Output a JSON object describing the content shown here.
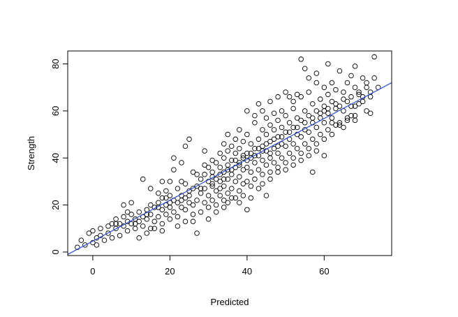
{
  "chart_data": {
    "type": "scatter",
    "title": "",
    "xlabel": "Predicted",
    "ylabel": "Strength",
    "xlim": [
      -6.5,
      77.5
    ],
    "ylim": [
      -1.5,
      85.5
    ],
    "x_ticks": [
      "0",
      "20",
      "40",
      "60"
    ],
    "x_tick_values": [
      0,
      20,
      40,
      60
    ],
    "y_ticks": [
      "0",
      "20",
      "40",
      "60",
      "80"
    ],
    "y_tick_values": [
      0,
      20,
      40,
      60,
      80
    ],
    "grid": false,
    "legend": "none",
    "point_color": "#000000",
    "fit_line": {
      "color": "#2b4fd6",
      "points": [
        [
          -6.5,
          -1.0
        ],
        [
          77.5,
          72.0
        ]
      ]
    },
    "series": [
      {
        "points": [
          [
            -4,
            2
          ],
          [
            -3,
            5
          ],
          [
            -2,
            3
          ],
          [
            -1,
            8
          ],
          [
            0,
            4
          ],
          [
            0,
            9
          ],
          [
            1,
            6
          ],
          [
            1,
            3
          ],
          [
            2,
            10
          ],
          [
            2,
            7
          ],
          [
            3,
            5
          ],
          [
            4,
            8
          ],
          [
            4,
            11
          ],
          [
            5,
            6
          ],
          [
            5,
            12
          ],
          [
            6,
            10
          ],
          [
            6,
            14
          ],
          [
            7,
            7
          ],
          [
            7,
            12
          ],
          [
            8,
            11
          ],
          [
            8,
            15
          ],
          [
            8,
            20
          ],
          [
            9,
            9
          ],
          [
            9,
            13
          ],
          [
            10,
            12
          ],
          [
            10,
            16
          ],
          [
            11,
            10
          ],
          [
            11,
            14
          ],
          [
            12,
            13
          ],
          [
            12,
            17
          ],
          [
            13,
            11
          ],
          [
            13,
            15
          ],
          [
            13,
            31
          ],
          [
            14,
            14
          ],
          [
            14,
            18
          ],
          [
            15,
            10
          ],
          [
            15,
            16
          ],
          [
            15,
            20
          ],
          [
            16,
            13
          ],
          [
            16,
            19
          ],
          [
            17,
            15
          ],
          [
            17,
            21
          ],
          [
            17,
            25
          ],
          [
            18,
            12
          ],
          [
            18,
            18
          ],
          [
            18,
            23
          ],
          [
            19,
            16
          ],
          [
            19,
            20
          ],
          [
            19,
            26
          ],
          [
            20,
            14
          ],
          [
            20,
            19
          ],
          [
            20,
            24
          ],
          [
            20,
            30
          ],
          [
            21,
            17
          ],
          [
            21,
            22
          ],
          [
            21,
            35
          ],
          [
            21,
            40
          ],
          [
            22,
            15
          ],
          [
            22,
            21
          ],
          [
            22,
            27
          ],
          [
            23,
            19
          ],
          [
            23,
            24
          ],
          [
            23,
            38
          ],
          [
            24,
            18
          ],
          [
            24,
            23
          ],
          [
            24,
            29
          ],
          [
            24,
            45
          ],
          [
            25,
            21
          ],
          [
            25,
            26
          ],
          [
            25,
            48
          ],
          [
            26,
            13
          ],
          [
            26,
            20
          ],
          [
            26,
            27
          ],
          [
            26,
            34
          ],
          [
            27,
            22
          ],
          [
            27,
            28
          ],
          [
            27,
            8
          ],
          [
            28,
            17
          ],
          [
            28,
            25
          ],
          [
            28,
            31
          ],
          [
            29,
            21
          ],
          [
            29,
            27
          ],
          [
            29,
            33
          ],
          [
            29,
            43
          ],
          [
            30,
            19
          ],
          [
            30,
            24
          ],
          [
            30,
            30
          ],
          [
            30,
            36
          ],
          [
            31,
            22
          ],
          [
            31,
            28
          ],
          [
            31,
            34
          ],
          [
            31,
            29
          ],
          [
            32,
            20
          ],
          [
            32,
            26
          ],
          [
            32,
            31
          ],
          [
            32,
            38
          ],
          [
            33,
            24
          ],
          [
            33,
            30
          ],
          [
            33,
            36
          ],
          [
            33,
            42
          ],
          [
            34,
            22
          ],
          [
            34,
            28
          ],
          [
            34,
            34
          ],
          [
            34,
            40
          ],
          [
            34,
            46
          ],
          [
            35,
            25
          ],
          [
            35,
            31
          ],
          [
            35,
            37
          ],
          [
            35,
            43
          ],
          [
            35,
            50
          ],
          [
            36,
            27
          ],
          [
            36,
            33
          ],
          [
            36,
            39
          ],
          [
            36,
            45
          ],
          [
            37,
            23
          ],
          [
            37,
            30
          ],
          [
            37,
            36
          ],
          [
            37,
            42
          ],
          [
            37,
            48
          ],
          [
            38,
            26
          ],
          [
            38,
            32
          ],
          [
            38,
            38
          ],
          [
            38,
            44
          ],
          [
            38,
            52
          ],
          [
            39,
            29
          ],
          [
            39,
            35
          ],
          [
            39,
            41
          ],
          [
            39,
            47
          ],
          [
            40,
            18
          ],
          [
            40,
            30
          ],
          [
            40,
            36
          ],
          [
            40,
            42
          ],
          [
            40,
            50
          ],
          [
            41,
            28
          ],
          [
            41,
            34
          ],
          [
            41,
            40
          ],
          [
            41,
            46
          ],
          [
            42,
            31
          ],
          [
            42,
            38
          ],
          [
            42,
            44
          ],
          [
            42,
            55
          ],
          [
            43,
            27
          ],
          [
            43,
            35
          ],
          [
            43,
            41
          ],
          [
            43,
            48
          ],
          [
            43,
            63
          ],
          [
            44,
            33
          ],
          [
            44,
            39
          ],
          [
            44,
            45
          ],
          [
            44,
            52
          ],
          [
            45,
            24
          ],
          [
            45,
            37
          ],
          [
            45,
            43
          ],
          [
            45,
            50
          ],
          [
            45,
            57
          ],
          [
            46,
            34
          ],
          [
            46,
            40
          ],
          [
            46,
            47
          ],
          [
            46,
            54
          ],
          [
            47,
            38
          ],
          [
            47,
            44
          ],
          [
            47,
            52
          ],
          [
            47,
            59
          ],
          [
            48,
            36
          ],
          [
            48,
            42
          ],
          [
            48,
            49
          ],
          [
            48,
            56
          ],
          [
            49,
            40
          ],
          [
            49,
            46
          ],
          [
            49,
            53
          ],
          [
            49,
            60
          ],
          [
            50,
            38
          ],
          [
            50,
            45
          ],
          [
            50,
            51
          ],
          [
            50,
            58
          ],
          [
            51,
            42
          ],
          [
            51,
            48
          ],
          [
            51,
            55
          ],
          [
            51,
            66
          ],
          [
            52,
            40
          ],
          [
            52,
            46
          ],
          [
            52,
            53
          ],
          [
            52,
            61
          ],
          [
            53,
            44
          ],
          [
            53,
            50
          ],
          [
            53,
            57
          ],
          [
            53,
            67
          ],
          [
            54,
            42
          ],
          [
            54,
            49
          ],
          [
            54,
            56
          ],
          [
            54,
            82
          ],
          [
            55,
            46
          ],
          [
            55,
            52
          ],
          [
            55,
            60
          ],
          [
            55,
            78
          ],
          [
            56,
            44
          ],
          [
            56,
            51
          ],
          [
            56,
            58
          ],
          [
            56,
            68
          ],
          [
            57,
            48
          ],
          [
            57,
            34
          ],
          [
            57,
            55
          ],
          [
            57,
            63
          ],
          [
            58,
            46
          ],
          [
            58,
            53
          ],
          [
            58,
            60
          ],
          [
            58,
            72
          ],
          [
            59,
            50
          ],
          [
            59,
            57
          ],
          [
            59,
            65
          ],
          [
            60,
            41
          ],
          [
            60,
            48
          ],
          [
            60,
            55
          ],
          [
            60,
            62
          ],
          [
            60,
            70
          ],
          [
            61,
            52
          ],
          [
            61,
            59
          ],
          [
            61,
            67
          ],
          [
            61,
            80
          ],
          [
            62,
            50
          ],
          [
            62,
            57
          ],
          [
            62,
            64
          ],
          [
            62,
            72
          ],
          [
            63,
            54
          ],
          [
            63,
            61
          ],
          [
            63,
            69
          ],
          [
            64,
            55
          ],
          [
            64,
            62
          ],
          [
            64,
            77
          ],
          [
            65,
            53
          ],
          [
            65,
            60
          ],
          [
            65,
            68
          ],
          [
            66,
            57
          ],
          [
            66,
            64
          ],
          [
            66,
            72
          ],
          [
            67,
            58
          ],
          [
            67,
            66
          ],
          [
            67,
            75
          ],
          [
            68,
            56
          ],
          [
            68,
            62
          ],
          [
            68,
            70
          ],
          [
            68,
            79
          ],
          [
            69,
            63
          ],
          [
            69,
            68
          ],
          [
            70,
            66
          ],
          [
            70,
            74
          ],
          [
            71,
            60
          ],
          [
            71,
            70
          ],
          [
            72,
            59
          ],
          [
            72,
            66
          ],
          [
            73,
            74
          ],
          [
            73,
            83
          ],
          [
            74,
            70
          ],
          [
            12,
            6
          ],
          [
            14,
            8
          ],
          [
            16,
            10
          ],
          [
            18,
            9
          ],
          [
            22,
            11
          ],
          [
            24,
            13
          ],
          [
            26,
            16
          ],
          [
            19,
            23
          ],
          [
            23,
            30
          ],
          [
            27,
            33
          ],
          [
            29,
            37
          ],
          [
            31,
            39
          ],
          [
            33,
            27
          ],
          [
            35,
            21
          ],
          [
            36,
            23
          ],
          [
            38,
            21
          ],
          [
            39,
            24
          ],
          [
            41,
            23
          ],
          [
            44,
            29
          ],
          [
            46,
            31
          ],
          [
            48,
            34
          ],
          [
            50,
            35
          ],
          [
            52,
            37
          ],
          [
            54,
            39
          ],
          [
            56,
            41
          ],
          [
            58,
            43
          ],
          [
            30,
            14
          ],
          [
            32,
            17
          ],
          [
            34,
            19
          ],
          [
            10,
            21
          ],
          [
            15,
            27
          ],
          [
            18,
            30
          ],
          [
            40,
            60
          ],
          [
            42,
            58
          ],
          [
            44,
            60
          ],
          [
            46,
            64
          ],
          [
            48,
            66
          ],
          [
            50,
            68
          ],
          [
            52,
            64
          ],
          [
            54,
            66
          ],
          [
            56,
            74
          ],
          [
            58,
            76
          ],
          [
            60,
            60
          ],
          [
            62,
            55
          ],
          [
            64,
            54
          ],
          [
            66,
            56
          ],
          [
            68,
            58
          ],
          [
            70,
            64
          ],
          [
            72,
            68
          ],
          [
            34,
            31
          ],
          [
            36,
            35
          ],
          [
            38,
            37
          ],
          [
            40,
            39
          ],
          [
            42,
            41
          ],
          [
            44,
            43
          ],
          [
            46,
            42
          ],
          [
            48,
            45
          ],
          [
            6,
            12
          ],
          [
            9,
            17
          ],
          [
            11,
            12
          ],
          [
            14,
            16
          ],
          [
            17,
            19
          ],
          [
            20,
            21
          ],
          [
            23,
            22
          ],
          [
            25,
            24
          ],
          [
            28,
            27
          ],
          [
            31,
            32
          ],
          [
            33,
            33
          ],
          [
            35,
            35
          ],
          [
            37,
            39
          ],
          [
            39,
            40
          ],
          [
            41,
            42
          ],
          [
            43,
            44
          ],
          [
            45,
            46
          ],
          [
            47,
            48
          ],
          [
            49,
            49
          ],
          [
            51,
            51
          ],
          [
            53,
            53
          ],
          [
            55,
            55
          ],
          [
            57,
            57
          ],
          [
            59,
            59
          ],
          [
            61,
            61
          ],
          [
            63,
            63
          ],
          [
            65,
            65
          ],
          [
            67,
            62
          ],
          [
            69,
            67
          ],
          [
            71,
            72
          ]
        ]
      }
    ]
  }
}
